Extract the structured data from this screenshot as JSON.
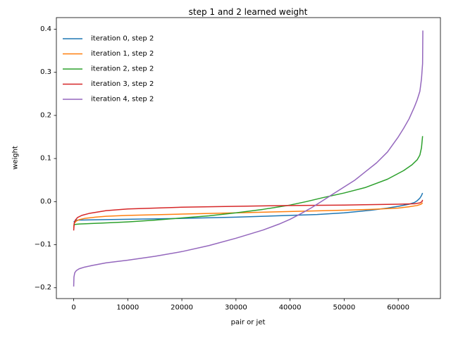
{
  "chart_data": {
    "type": "line",
    "title": "step 1 and 2 learned weight",
    "xlabel": "pair or jet",
    "ylabel": "weight",
    "xlim": [
      -3200,
      67800
    ],
    "ylim": [
      -0.225,
      0.427
    ],
    "xticks": [
      0,
      10000,
      20000,
      30000,
      40000,
      50000,
      60000
    ],
    "xtick_labels": [
      "0",
      "10000",
      "20000",
      "30000",
      "40000",
      "50000",
      "60000"
    ],
    "yticks": [
      -0.2,
      -0.1,
      0.0,
      0.1,
      0.2,
      0.3,
      0.4
    ],
    "ytick_labels": [
      "−0.2",
      "−0.1",
      "0.0",
      "0.1",
      "0.2",
      "0.3",
      "0.4"
    ],
    "legend_position": "upper-left",
    "grid": false,
    "series": [
      {
        "name": "iteration 0, step 2",
        "color": "#1f77b4",
        "x": [
          0,
          500,
          5000,
          10000,
          20000,
          30000,
          40000,
          45000,
          50000,
          55000,
          58000,
          60000,
          62000,
          63000,
          63500,
          64000,
          64300,
          64500
        ],
        "y": [
          -0.047,
          -0.043,
          -0.042,
          -0.041,
          -0.039,
          -0.036,
          -0.032,
          -0.03,
          -0.026,
          -0.02,
          -0.015,
          -0.011,
          -0.006,
          -0.002,
          0.002,
          0.008,
          0.014,
          0.02
        ]
      },
      {
        "name": "iteration 1, step 2",
        "color": "#ff7f0e",
        "x": [
          0,
          100,
          500,
          1000,
          2000,
          4000,
          6000,
          10000,
          20000,
          30000,
          40000,
          50000,
          55000,
          60000,
          62000,
          63500,
          64200,
          64500
        ],
        "y": [
          -0.061,
          -0.05,
          -0.045,
          -0.042,
          -0.039,
          -0.036,
          -0.034,
          -0.032,
          -0.029,
          -0.026,
          -0.023,
          -0.02,
          -0.018,
          -0.015,
          -0.012,
          -0.009,
          -0.006,
          -0.003
        ]
      },
      {
        "name": "iteration 2, step 2",
        "color": "#2ca02c",
        "x": [
          0,
          200,
          1000,
          5000,
          10000,
          15000,
          20000,
          25000,
          30000,
          35000,
          40000,
          43000,
          46000,
          50000,
          54000,
          58000,
          61000,
          62500,
          63500,
          64000,
          64300,
          64500
        ],
        "y": [
          -0.055,
          -0.053,
          -0.052,
          -0.05,
          -0.047,
          -0.043,
          -0.038,
          -0.033,
          -0.026,
          -0.018,
          -0.008,
          0.0,
          0.009,
          0.02,
          0.033,
          0.052,
          0.072,
          0.085,
          0.097,
          0.108,
          0.125,
          0.152
        ]
      },
      {
        "name": "iteration 3, step 2",
        "color": "#d62728",
        "x": [
          0,
          100,
          300,
          700,
          1500,
          3000,
          6000,
          10000,
          20000,
          30000,
          40000,
          50000,
          60000,
          63000,
          64000,
          64400,
          64500
        ],
        "y": [
          -0.067,
          -0.05,
          -0.043,
          -0.037,
          -0.032,
          -0.027,
          -0.021,
          -0.017,
          -0.013,
          -0.011,
          -0.009,
          -0.008,
          -0.006,
          -0.005,
          -0.003,
          0.0,
          0.004
        ]
      },
      {
        "name": "iteration 4, step 2",
        "color": "#9467bd",
        "x": [
          0,
          50,
          200,
          500,
          1000,
          2000,
          3500,
          6000,
          10000,
          15000,
          20000,
          25000,
          30000,
          35000,
          38000,
          40000,
          42000,
          44000,
          46000,
          48000,
          50000,
          52000,
          54000,
          56000,
          58000,
          60000,
          61000,
          62000,
          63000,
          63500,
          64000,
          64300,
          64500,
          64550
        ],
        "y": [
          -0.197,
          -0.175,
          -0.165,
          -0.16,
          -0.156,
          -0.152,
          -0.148,
          -0.142,
          -0.136,
          -0.127,
          -0.116,
          -0.102,
          -0.085,
          -0.066,
          -0.052,
          -0.041,
          -0.028,
          -0.014,
          0.002,
          0.018,
          0.034,
          0.05,
          0.07,
          0.09,
          0.115,
          0.15,
          0.17,
          0.192,
          0.22,
          0.236,
          0.256,
          0.285,
          0.32,
          0.397
        ]
      }
    ]
  }
}
